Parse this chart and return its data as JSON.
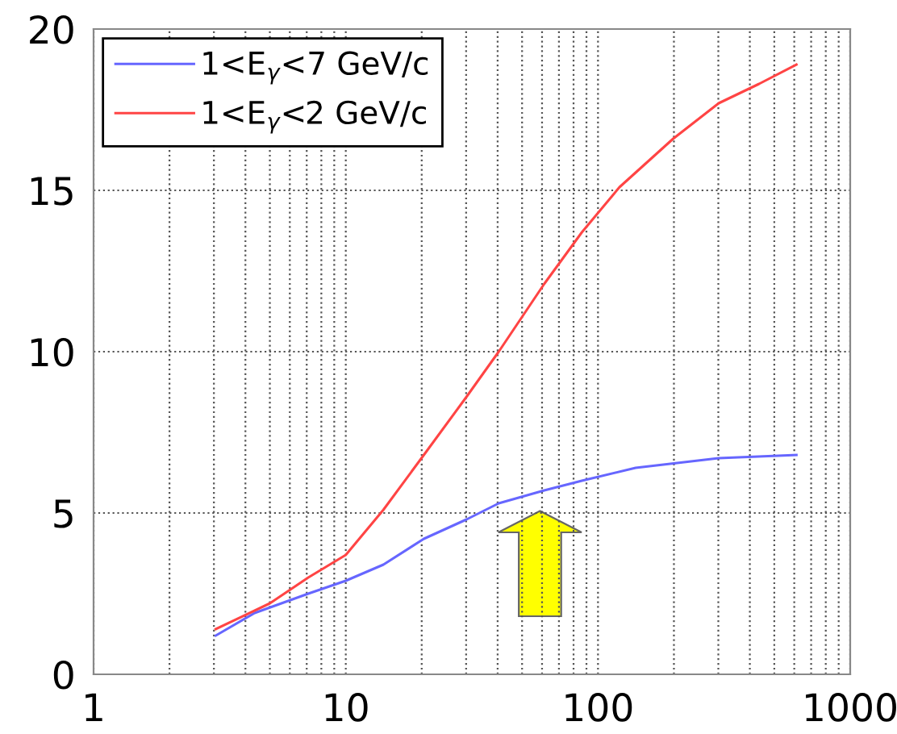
{
  "chart_data": {
    "type": "line",
    "log": "x",
    "grid": true,
    "legend": "top left",
    "xlim": [
      1,
      1000
    ],
    "xticks": [
      1,
      10,
      100,
      1000
    ],
    "ylim": [
      0,
      20
    ],
    "yticks": [
      0,
      5,
      10,
      15,
      20
    ],
    "series": [
      {
        "name": "1<E$_{γ}$<7 GeV/c",
        "color": "#6666ff",
        "x": [
          3.05,
          4.35,
          7.1,
          10,
          14.1,
          20.4,
          30.1,
          40.4,
          61.2,
          86.3,
          141,
          301,
          612
        ],
        "values": [
          1.2,
          1.9,
          2.5,
          2.9,
          3.4,
          4.2,
          4.8,
          5.3,
          5.7,
          6.0,
          6.4,
          6.7,
          6.8
        ]
      },
      {
        "name": "1<E$_{γ}$<2 GeV/c",
        "color": "#ff4444",
        "x": [
          3.05,
          5.0,
          7.1,
          10,
          14.1,
          20.4,
          30.1,
          40.4,
          61.2,
          86.3,
          121.7,
          198.6,
          301,
          435,
          612
        ],
        "values": [
          1.4,
          2.2,
          3.0,
          3.7,
          5.1,
          6.8,
          8.6,
          10.0,
          12.1,
          13.7,
          15.1,
          16.6,
          17.7,
          18.3,
          18.9
        ]
      }
    ]
  }
}
